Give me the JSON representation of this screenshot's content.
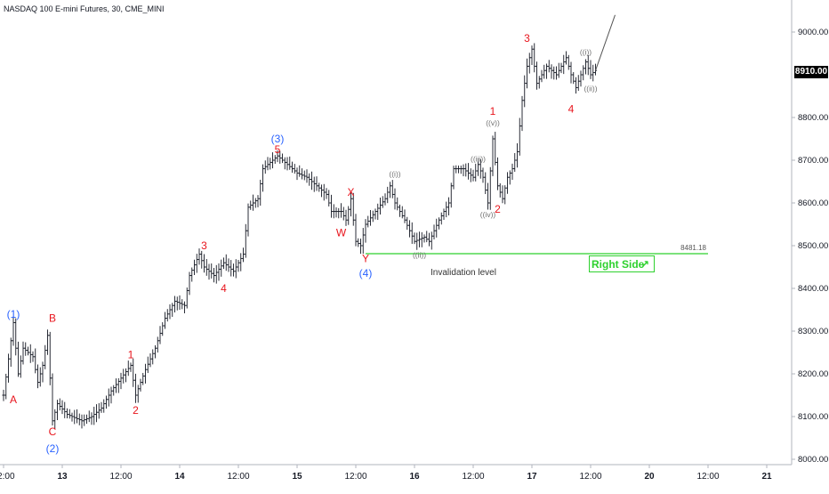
{
  "chart_data": {
    "type": "candlestick",
    "title": "NASDAQ 100 E-mini Futures, 30, CME_MINI",
    "ylim": [
      7980,
      9040
    ],
    "yticks": [
      {
        "value": 9000,
        "label": "9000.00"
      },
      {
        "value": 8800,
        "label": "8800.00"
      },
      {
        "value": 8700,
        "label": "8700.00"
      },
      {
        "value": 8600,
        "label": "8600.00"
      },
      {
        "value": 8500,
        "label": "8500.00"
      },
      {
        "value": 8400,
        "label": "8400.00"
      },
      {
        "value": 8300,
        "label": "8300.00"
      },
      {
        "value": 8200,
        "label": "8200.00"
      },
      {
        "value": 8100,
        "label": "8100.00"
      },
      {
        "value": 8000,
        "label": "8000.00"
      }
    ],
    "xticks": [
      {
        "t": 0,
        "label": "12:00"
      },
      {
        "t": 12,
        "label": "13"
      },
      {
        "t": 24,
        "label": "12:00"
      },
      {
        "t": 36,
        "label": "14"
      },
      {
        "t": 48,
        "label": "12:00"
      },
      {
        "t": 60,
        "label": "15"
      },
      {
        "t": 72,
        "label": "12:00"
      },
      {
        "t": 84,
        "label": "16"
      },
      {
        "t": 96,
        "label": "12:00"
      },
      {
        "t": 108,
        "label": "17"
      },
      {
        "t": 120,
        "label": "12:00"
      },
      {
        "t": 132,
        "label": "20"
      },
      {
        "t": 144,
        "label": "12:00"
      },
      {
        "t": 156,
        "label": "21"
      }
    ],
    "x_unit": "hours from chart start (12:00 on the 12th)",
    "path": [
      [
        0,
        8150
      ],
      [
        2,
        8320
      ],
      [
        3,
        8200
      ],
      [
        4,
        8260
      ],
      [
        6,
        8240
      ],
      [
        7,
        8180
      ],
      [
        8,
        8220
      ],
      [
        9,
        8290
      ],
      [
        10,
        8090
      ],
      [
        11,
        8130
      ],
      [
        13,
        8105
      ],
      [
        16,
        8090
      ],
      [
        18,
        8100
      ],
      [
        20,
        8120
      ],
      [
        22,
        8160
      ],
      [
        24,
        8190
      ],
      [
        26,
        8220
      ],
      [
        27,
        8150
      ],
      [
        29,
        8210
      ],
      [
        31,
        8260
      ],
      [
        33,
        8330
      ],
      [
        35,
        8370
      ],
      [
        37,
        8360
      ],
      [
        38,
        8430
      ],
      [
        40,
        8480
      ],
      [
        41,
        8450
      ],
      [
        43,
        8430
      ],
      [
        45,
        8460
      ],
      [
        47,
        8440
      ],
      [
        49,
        8480
      ],
      [
        50,
        8590
      ],
      [
        52,
        8610
      ],
      [
        53,
        8680
      ],
      [
        55,
        8700
      ],
      [
        56,
        8710
      ],
      [
        58,
        8690
      ],
      [
        60,
        8670
      ],
      [
        62,
        8660
      ],
      [
        64,
        8640
      ],
      [
        66,
        8620
      ],
      [
        67,
        8580
      ],
      [
        69,
        8580
      ],
      [
        70,
        8560
      ],
      [
        71,
        8610
      ],
      [
        72,
        8510
      ],
      [
        73,
        8500
      ],
      [
        74,
        8550
      ],
      [
        76,
        8580
      ],
      [
        78,
        8610
      ],
      [
        79,
        8640
      ],
      [
        80,
        8600
      ],
      [
        82,
        8560
      ],
      [
        84,
        8510
      ],
      [
        86,
        8520
      ],
      [
        87,
        8510
      ],
      [
        89,
        8560
      ],
      [
        91,
        8600
      ],
      [
        92,
        8680
      ],
      [
        94,
        8680
      ],
      [
        96,
        8660
      ],
      [
        97,
        8690
      ],
      [
        98,
        8660
      ],
      [
        99,
        8600
      ],
      [
        100,
        8750
      ],
      [
        101,
        8640
      ],
      [
        102,
        8610
      ],
      [
        103,
        8660
      ],
      [
        104,
        8680
      ],
      [
        105,
        8720
      ],
      [
        106,
        8840
      ],
      [
        107,
        8920
      ],
      [
        108,
        8960
      ],
      [
        109,
        8880
      ],
      [
        111,
        8920
      ],
      [
        113,
        8900
      ],
      [
        115,
        8940
      ],
      [
        116,
        8900
      ],
      [
        117,
        8870
      ],
      [
        119,
        8930
      ],
      [
        120,
        8900
      ],
      [
        121,
        8910
      ]
    ],
    "forecast_line": [
      [
        121,
        8910
      ],
      [
        125,
        9040
      ]
    ],
    "last_price": {
      "value": 8910,
      "label": "8910.00"
    },
    "invalidation": {
      "value": 8481.18,
      "label": "8481.18",
      "text": "Invalidation level",
      "t_start": 74,
      "t_end": 144
    },
    "wave_labels": [
      {
        "text": "(1)",
        "t": 2,
        "price": 8340,
        "color": "blue"
      },
      {
        "text": "A",
        "t": 2,
        "price": 8140,
        "color": "red"
      },
      {
        "text": "B",
        "t": 10,
        "price": 8330,
        "color": "red"
      },
      {
        "text": "C",
        "t": 10,
        "price": 8065,
        "color": "red"
      },
      {
        "text": "(2)",
        "t": 10,
        "price": 8025,
        "color": "blue"
      },
      {
        "text": "1",
        "t": 26,
        "price": 8245,
        "color": "red"
      },
      {
        "text": "2",
        "t": 27,
        "price": 8115,
        "color": "red"
      },
      {
        "text": "3",
        "t": 41,
        "price": 8500,
        "color": "red"
      },
      {
        "text": "4",
        "t": 45,
        "price": 8400,
        "color": "red"
      },
      {
        "text": "(3)",
        "t": 56,
        "price": 8750,
        "color": "blue"
      },
      {
        "text": "5",
        "t": 56,
        "price": 8725,
        "color": "red"
      },
      {
        "text": "X",
        "t": 71,
        "price": 8625,
        "color": "red"
      },
      {
        "text": "W",
        "t": 69,
        "price": 8530,
        "color": "red"
      },
      {
        "text": "Y",
        "t": 74,
        "price": 8470,
        "color": "red"
      },
      {
        "text": "(4)",
        "t": 74,
        "price": 8435,
        "color": "blue"
      },
      {
        "text": "((i))",
        "t": 80,
        "price": 8670,
        "color": "gray"
      },
      {
        "text": "((ii))",
        "t": 85,
        "price": 8480,
        "color": "gray"
      },
      {
        "text": "((iii))",
        "t": 97,
        "price": 8705,
        "color": "gray"
      },
      {
        "text": "((iv))",
        "t": 99,
        "price": 8575,
        "color": "gray"
      },
      {
        "text": "((v))",
        "t": 100,
        "price": 8790,
        "color": "gray"
      },
      {
        "text": "1",
        "t": 100,
        "price": 8815,
        "color": "red"
      },
      {
        "text": "2",
        "t": 101,
        "price": 8585,
        "color": "red"
      },
      {
        "text": "3",
        "t": 107,
        "price": 8985,
        "color": "red"
      },
      {
        "text": "4",
        "t": 116,
        "price": 8820,
        "color": "red"
      },
      {
        "text": "((i))",
        "t": 119,
        "price": 8955,
        "color": "gray"
      },
      {
        "text": "((ii))",
        "t": 120,
        "price": 8870,
        "color": "gray"
      }
    ]
  },
  "colors": {
    "red": "#e8141c",
    "blue": "#2962ff",
    "gray": "#707070",
    "green": "#2ed12e",
    "candle": "#131722",
    "axis_text": "#131722"
  },
  "badge": {
    "text": "Right Side",
    "icon": "arrow-up-right-icon",
    "arrow": "↗"
  }
}
